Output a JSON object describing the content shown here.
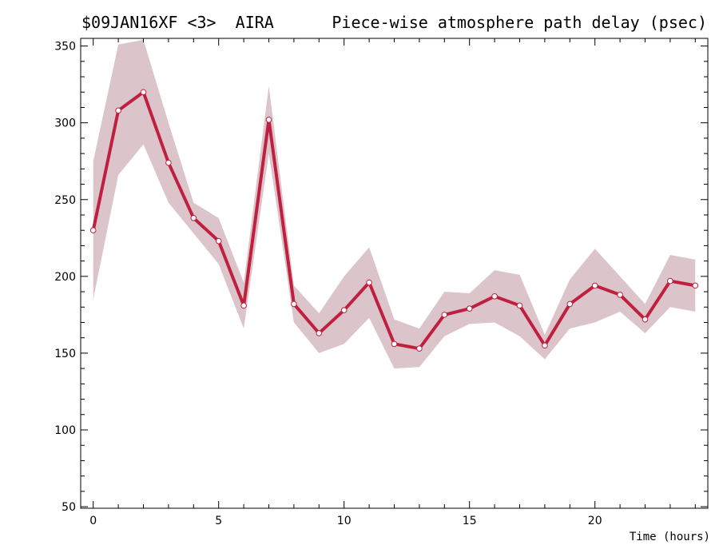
{
  "header": {
    "left": "$09JAN16XF <3>  AIRA",
    "right": "Piece-wise atmosphere path delay (psec)"
  },
  "chart_data": {
    "type": "line",
    "title": "Piece-wise atmosphere path delay (psec)",
    "xlabel": "Time (hours)",
    "ylabel": "",
    "xlim": [
      -0.5,
      24.5
    ],
    "ylim": [
      49,
      355
    ],
    "x_ticks": [
      0,
      5,
      10,
      15,
      20
    ],
    "y_ticks": [
      50,
      100,
      150,
      200,
      250,
      300,
      350
    ],
    "grid": false,
    "series": [
      {
        "x": [
          0,
          1,
          2,
          3,
          4,
          5,
          6,
          7,
          8,
          9,
          10,
          11,
          12,
          13,
          14,
          15,
          16,
          17,
          18,
          19,
          20,
          21,
          22,
          23,
          24
        ],
        "values": [
          230,
          308,
          320,
          274,
          238,
          223,
          181,
          302,
          182,
          163,
          178,
          196,
          156,
          153,
          175,
          179,
          187,
          181,
          155,
          182,
          194,
          188,
          172,
          197,
          194
        ],
        "upper": [
          275,
          351,
          354,
          300,
          248,
          238,
          196,
          324,
          194,
          176,
          200,
          219,
          172,
          166,
          190,
          189,
          204,
          201,
          162,
          198,
          218,
          200,
          182,
          214,
          211
        ],
        "lower": [
          185,
          266,
          286,
          248,
          228,
          208,
          166,
          280,
          170,
          150,
          156,
          173,
          140,
          141,
          161,
          169,
          170,
          161,
          146,
          166,
          170,
          177,
          163,
          180,
          177
        ]
      }
    ],
    "colors": {
      "line": "#c0203f",
      "band": "#dcc5ca",
      "marker_fill": "#ffffff"
    }
  }
}
